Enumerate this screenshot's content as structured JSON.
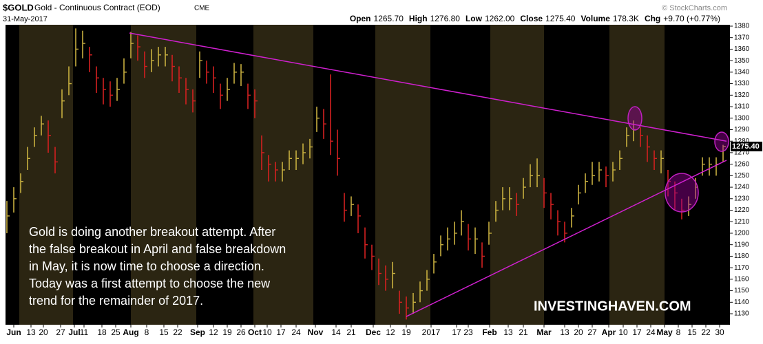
{
  "header": {
    "symbol": "$GOLD",
    "name": "Gold - Continuous Contract (EOD)",
    "exchange": "CME",
    "source": "© StockCharts.com",
    "date": "31-May-2017",
    "stats": [
      {
        "label": "Open",
        "value": "1265.70"
      },
      {
        "label": "High",
        "value": "1276.80"
      },
      {
        "label": "Low",
        "value": "1262.00"
      },
      {
        "label": "Close",
        "value": "1275.40"
      },
      {
        "label": "Volume",
        "value": "178.3K"
      },
      {
        "label": "Chg",
        "value": "+9.70 (+0.77%)"
      }
    ]
  },
  "chart_data": {
    "type": "ohlc",
    "up_color": "#c8b040",
    "down_color": "#d42020",
    "trend_color": "#d020d0",
    "ylim": [
      1122,
      1384
    ],
    "yticks": [
      1130,
      1140,
      1150,
      1160,
      1170,
      1180,
      1190,
      1200,
      1210,
      1220,
      1230,
      1240,
      1250,
      1260,
      1270,
      1280,
      1290,
      1300,
      1310,
      1320,
      1330,
      1340,
      1350,
      1360,
      1370,
      1380
    ],
    "xlim": [
      0,
      104
    ],
    "xticks": [
      {
        "value": 1,
        "label": "Jun"
      },
      {
        "value": 3.5,
        "label": "13"
      },
      {
        "value": 5.3,
        "label": "20"
      },
      {
        "value": 7.8,
        "label": "27"
      },
      {
        "value": 9.8,
        "label": "Jul"
      },
      {
        "value": 11.2,
        "label": "11"
      },
      {
        "value": 13.8,
        "label": "18"
      },
      {
        "value": 15.8,
        "label": "25"
      },
      {
        "value": 18,
        "label": "Aug"
      },
      {
        "value": 20.3,
        "label": "8"
      },
      {
        "value": 22.8,
        "label": "15"
      },
      {
        "value": 24.8,
        "label": "22"
      },
      {
        "value": 27.7,
        "label": "Sep"
      },
      {
        "value": 30,
        "label": "12"
      },
      {
        "value": 32,
        "label": "19"
      },
      {
        "value": 34,
        "label": "26"
      },
      {
        "value": 36,
        "label": "Oct"
      },
      {
        "value": 37.8,
        "label": "10"
      },
      {
        "value": 39.8,
        "label": "17"
      },
      {
        "value": 42,
        "label": "24"
      },
      {
        "value": 44.8,
        "label": "Nov"
      },
      {
        "value": 47.8,
        "label": "14"
      },
      {
        "value": 50,
        "label": "21"
      },
      {
        "value": 53.2,
        "label": "Dec"
      },
      {
        "value": 55.7,
        "label": "12"
      },
      {
        "value": 58,
        "label": "19"
      },
      {
        "value": 61.6,
        "label": "2017"
      },
      {
        "value": 65.3,
        "label": "17"
      },
      {
        "value": 67,
        "label": "23"
      },
      {
        "value": 70.1,
        "label": "Feb"
      },
      {
        "value": 72.8,
        "label": "13"
      },
      {
        "value": 75,
        "label": "21"
      },
      {
        "value": 78,
        "label": "Mar"
      },
      {
        "value": 81,
        "label": "13"
      },
      {
        "value": 83,
        "label": "20"
      },
      {
        "value": 85,
        "label": "27"
      },
      {
        "value": 87.4,
        "label": "Apr"
      },
      {
        "value": 89.5,
        "label": "10"
      },
      {
        "value": 91.5,
        "label": "17"
      },
      {
        "value": 93.5,
        "label": "24"
      },
      {
        "value": 95.5,
        "label": "May"
      },
      {
        "value": 97.5,
        "label": "8"
      },
      {
        "value": 99.5,
        "label": "15"
      },
      {
        "value": 101.5,
        "label": "22"
      },
      {
        "value": 103.5,
        "label": "30"
      }
    ],
    "close": [
      1215,
      1230,
      1245,
      1265,
      1285,
      1295,
      1285,
      1262,
      1315,
      1330,
      1360,
      1365,
      1355,
      1335,
      1325,
      1320,
      1325,
      1340,
      1365,
      1362,
      1345,
      1350,
      1355,
      1355,
      1345,
      1335,
      1325,
      1315,
      1350,
      1340,
      1335,
      1320,
      1325,
      1340,
      1340,
      1320,
      1315,
      1270,
      1260,
      1255,
      1255,
      1265,
      1265,
      1270,
      1275,
      1300,
      1295,
      1280,
      1265,
      1220,
      1225,
      1215,
      1190,
      1180,
      1165,
      1160,
      1165,
      1140,
      1135,
      1140,
      1150,
      1160,
      1175,
      1190,
      1195,
      1200,
      1210,
      1195,
      1195,
      1180,
      1200,
      1220,
      1230,
      1230,
      1225,
      1240,
      1250,
      1250,
      1235,
      1225,
      1210,
      1200,
      1215,
      1235,
      1245,
      1250,
      1255,
      1250,
      1255,
      1265,
      1285,
      1290,
      1285,
      1275,
      1265,
      1265,
      1245,
      1235,
      1220,
      1225,
      1240,
      1260,
      1260,
      1260,
      1275.4
    ],
    "high": [
      1228,
      1240,
      1252,
      1275,
      1292,
      1302,
      1298,
      1275,
      1325,
      1345,
      1378,
      1376,
      1362,
      1345,
      1335,
      1332,
      1335,
      1352,
      1375,
      1372,
      1358,
      1360,
      1362,
      1362,
      1355,
      1345,
      1335,
      1325,
      1358,
      1350,
      1345,
      1330,
      1335,
      1348,
      1347,
      1330,
      1325,
      1285,
      1268,
      1262,
      1262,
      1272,
      1272,
      1278,
      1282,
      1310,
      1308,
      1338,
      1290,
      1235,
      1232,
      1225,
      1205,
      1190,
      1178,
      1172,
      1175,
      1150,
      1145,
      1148,
      1158,
      1168,
      1182,
      1198,
      1205,
      1210,
      1220,
      1208,
      1205,
      1192,
      1210,
      1228,
      1240,
      1240,
      1235,
      1248,
      1260,
      1265,
      1248,
      1235,
      1220,
      1210,
      1222,
      1242,
      1252,
      1262,
      1262,
      1258,
      1262,
      1272,
      1292,
      1298,
      1292,
      1285,
      1272,
      1272,
      1255,
      1245,
      1230,
      1232,
      1248,
      1266,
      1266,
      1266,
      1276.8
    ],
    "low": [
      1200,
      1218,
      1235,
      1255,
      1275,
      1285,
      1270,
      1252,
      1300,
      1320,
      1345,
      1352,
      1340,
      1322,
      1312,
      1310,
      1315,
      1330,
      1352,
      1350,
      1335,
      1340,
      1345,
      1345,
      1332,
      1322,
      1312,
      1305,
      1335,
      1330,
      1322,
      1308,
      1315,
      1330,
      1328,
      1308,
      1300,
      1255,
      1245,
      1245,
      1245,
      1255,
      1255,
      1260,
      1265,
      1288,
      1282,
      1268,
      1250,
      1210,
      1215,
      1200,
      1178,
      1168,
      1155,
      1150,
      1152,
      1130,
      1125,
      1130,
      1140,
      1150,
      1165,
      1180,
      1185,
      1190,
      1198,
      1185,
      1182,
      1170,
      1190,
      1210,
      1220,
      1220,
      1215,
      1230,
      1240,
      1240,
      1222,
      1212,
      1198,
      1192,
      1205,
      1225,
      1235,
      1242,
      1245,
      1240,
      1245,
      1255,
      1275,
      1280,
      1275,
      1262,
      1255,
      1252,
      1232,
      1220,
      1212,
      1215,
      1230,
      1250,
      1250,
      1250,
      1262
    ],
    "last_label": {
      "value": 1275.4,
      "label": "1275.40"
    },
    "trendlines": [
      {
        "x": [
          17.8,
          104.5
        ],
        "y": [
          1374,
          1280
        ]
      },
      {
        "x": [
          58,
          104.5
        ],
        "y": [
          1127.6,
          1263.4
        ]
      }
    ],
    "annotation": [
      "Gold is doing another breakout attempt. After",
      "the false breakout in April and false breakdown",
      "in May, it is now time to choose a direction.",
      "Today was a first attempt to choose the new",
      "trend for the remainder of 2017."
    ],
    "watermark": "INVESTINGHAVEN.COM"
  }
}
